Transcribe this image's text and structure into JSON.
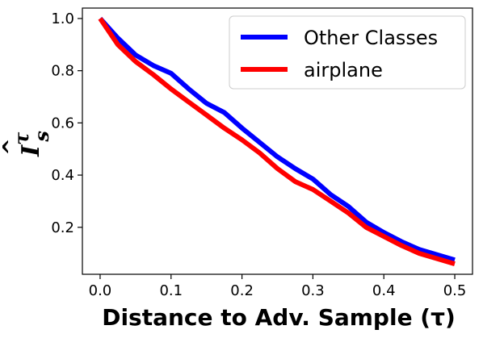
{
  "chart_data": {
    "type": "line",
    "xlabel": "Distance to Adv. Sample (τ)",
    "ylabel": {
      "base": "I",
      "superscript": "τ",
      "subscript": "s",
      "hat": "^"
    },
    "xlim": [
      -0.025,
      0.525
    ],
    "ylim": [
      0.02,
      1.04
    ],
    "xticks": [
      0.0,
      0.1,
      0.2,
      0.3,
      0.4,
      0.5
    ],
    "xtick_labels": [
      "0.0",
      "0.1",
      "0.2",
      "0.3",
      "0.4",
      "0.5"
    ],
    "yticks": [
      0.2,
      0.4,
      0.6,
      0.8,
      1.0
    ],
    "ytick_labels": [
      "0.2",
      "0.4",
      "0.6",
      "0.8",
      "1.0"
    ],
    "grid": false,
    "legend_position": "top-right",
    "series": [
      {
        "name": "Other Classes",
        "color": "#0000ff",
        "x": [
          0.0,
          0.025,
          0.05,
          0.075,
          0.1,
          0.125,
          0.15,
          0.175,
          0.2,
          0.225,
          0.25,
          0.275,
          0.3,
          0.325,
          0.35,
          0.375,
          0.4,
          0.425,
          0.45,
          0.475,
          0.5
        ],
        "y": [
          1.0,
          0.925,
          0.86,
          0.82,
          0.79,
          0.73,
          0.675,
          0.64,
          0.58,
          0.525,
          0.47,
          0.425,
          0.385,
          0.325,
          0.28,
          0.22,
          0.18,
          0.145,
          0.115,
          0.095,
          0.075
        ]
      },
      {
        "name": "airplane",
        "color": "#ff0000",
        "x": [
          0.0,
          0.025,
          0.05,
          0.075,
          0.1,
          0.125,
          0.15,
          0.175,
          0.2,
          0.225,
          0.25,
          0.275,
          0.3,
          0.325,
          0.35,
          0.375,
          0.4,
          0.425,
          0.45,
          0.475,
          0.5
        ],
        "y": [
          1.0,
          0.9,
          0.835,
          0.785,
          0.73,
          0.68,
          0.63,
          0.58,
          0.535,
          0.485,
          0.425,
          0.375,
          0.345,
          0.3,
          0.255,
          0.2,
          0.165,
          0.13,
          0.1,
          0.08,
          0.06
        ]
      }
    ]
  }
}
